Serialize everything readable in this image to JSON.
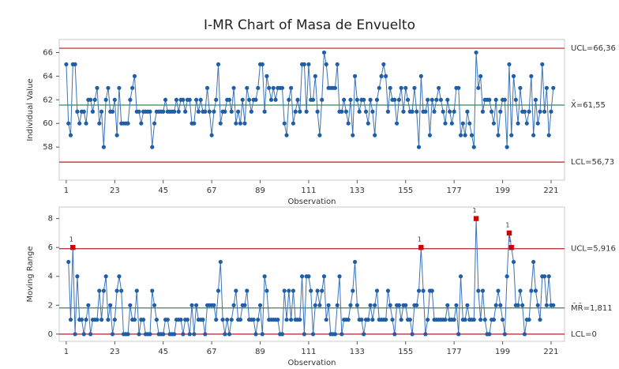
{
  "chart_data": [
    {
      "type": "line",
      "title": "I-MR Chart of Masa de Envuelto",
      "x_label": "Observation",
      "y_label": "Individual Value",
      "x": [
        1,
        2,
        3,
        4,
        5,
        6,
        7,
        8,
        9,
        10,
        11,
        12,
        13,
        14,
        15,
        16,
        17,
        18,
        19,
        20,
        21,
        22,
        23,
        24,
        25,
        26,
        27,
        28,
        29,
        30,
        31,
        32,
        33,
        34,
        35,
        36,
        37,
        38,
        39,
        40,
        41,
        42,
        43,
        44,
        45,
        46,
        47,
        48,
        49,
        50,
        51,
        52,
        53,
        54,
        55,
        56,
        57,
        58,
        59,
        60,
        61,
        62,
        63,
        64,
        65,
        66,
        67,
        68,
        69,
        70,
        71,
        72,
        73,
        74,
        75,
        76,
        77,
        78,
        79,
        80,
        81,
        82,
        83,
        84,
        85,
        86,
        87,
        88,
        89,
        90,
        91,
        92,
        93,
        94,
        95,
        96,
        97,
        98,
        99,
        100,
        101,
        102,
        103,
        104,
        105,
        106,
        107,
        108,
        109,
        110,
        111,
        112,
        113,
        114,
        115,
        116,
        117,
        118,
        119,
        120,
        121,
        122,
        123,
        124,
        125,
        126,
        127,
        128,
        129,
        130,
        131,
        132,
        133,
        134,
        135,
        136,
        137,
        138,
        139,
        140,
        141,
        142,
        143,
        144,
        145,
        146,
        147,
        148,
        149,
        150,
        151,
        152,
        153,
        154,
        155,
        156,
        157,
        158,
        159,
        160,
        161,
        162,
        163,
        164,
        165,
        166,
        167,
        168,
        169,
        170,
        171,
        172,
        173,
        174,
        175,
        176,
        177,
        178,
        179,
        180,
        181,
        182,
        183,
        184,
        185,
        186,
        187,
        188,
        189,
        190,
        191,
        192,
        193,
        194,
        195,
        196,
        197,
        198,
        199,
        200,
        201,
        202,
        203,
        204,
        205,
        206,
        207,
        208,
        209,
        210,
        211,
        212,
        213,
        214,
        215,
        216,
        217,
        218,
        219,
        220,
        221,
        222
      ],
      "values": [
        65,
        60,
        59,
        65,
        65,
        61,
        60,
        61,
        61,
        60,
        62,
        62,
        61,
        62,
        63,
        60,
        61,
        58,
        62,
        63,
        61,
        61,
        62,
        59,
        63,
        60,
        60,
        60,
        60,
        62,
        63,
        64,
        61,
        61,
        60,
        61,
        61,
        61,
        61,
        58,
        60,
        61,
        61,
        61,
        61,
        62,
        61,
        61,
        61,
        61,
        62,
        61,
        62,
        62,
        61,
        62,
        62,
        60,
        60,
        62,
        61,
        62,
        61,
        61,
        63,
        61,
        59,
        61,
        62,
        65,
        60,
        61,
        61,
        62,
        62,
        61,
        63,
        60,
        61,
        60,
        62,
        60,
        63,
        62,
        61,
        62,
        62,
        63,
        65,
        65,
        61,
        64,
        63,
        62,
        63,
        62,
        63,
        63,
        63,
        60,
        59,
        62,
        63,
        60,
        61,
        62,
        61,
        65,
        65,
        61,
        65,
        62,
        62,
        64,
        61,
        59,
        62,
        66,
        65,
        63,
        63,
        63,
        63,
        65,
        61,
        61,
        62,
        61,
        60,
        62,
        59,
        64,
        62,
        61,
        62,
        62,
        61,
        60,
        62,
        61,
        59,
        62,
        63,
        64,
        65,
        64,
        61,
        63,
        62,
        62,
        60,
        62,
        63,
        61,
        63,
        62,
        61,
        61,
        63,
        61,
        58,
        64,
        61,
        61,
        62,
        59,
        62,
        61,
        62,
        63,
        62,
        61,
        60,
        62,
        61,
        60,
        61,
        63,
        63,
        59,
        60,
        59,
        61,
        60,
        59,
        58,
        66,
        63,
        64,
        61,
        62,
        62,
        62,
        61,
        60,
        62,
        59,
        61,
        62,
        62,
        58,
        65,
        59,
        64,
        62,
        60,
        63,
        61,
        61,
        60,
        61,
        64,
        59,
        62,
        60,
        61,
        65,
        61,
        63,
        59,
        61,
        63
      ],
      "color": "#1f5fa8",
      "xlim": [
        -2.2,
        227.1
      ],
      "ylim": [
        55.2,
        67.1
      ],
      "xticks": [
        1,
        23,
        45,
        67,
        89,
        111,
        133,
        155,
        177,
        199,
        221
      ],
      "yticks": [
        58,
        60,
        62,
        64,
        66
      ],
      "limits": [
        {
          "label": "UCL=66,36",
          "value": 66.36,
          "color": "#b22222"
        },
        {
          "label": "X̄=61,55",
          "value": 61.55,
          "color": "#2e8b57"
        },
        {
          "label": "LCL=56,73",
          "value": 56.73,
          "color": "#b22222"
        }
      ]
    },
    {
      "type": "line",
      "x_label": "Observation",
      "y_label": "Moving Range",
      "flag_label": "1",
      "flag_color": "#d40000",
      "x": [
        2,
        3,
        4,
        5,
        6,
        7,
        8,
        9,
        10,
        11,
        12,
        13,
        14,
        15,
        16,
        17,
        18,
        19,
        20,
        21,
        22,
        23,
        24,
        25,
        26,
        27,
        28,
        29,
        30,
        31,
        32,
        33,
        34,
        35,
        36,
        37,
        38,
        39,
        40,
        41,
        42,
        43,
        44,
        45,
        46,
        47,
        48,
        49,
        50,
        51,
        52,
        53,
        54,
        55,
        56,
        57,
        58,
        59,
        60,
        61,
        62,
        63,
        64,
        65,
        66,
        67,
        68,
        69,
        70,
        71,
        72,
        73,
        74,
        75,
        76,
        77,
        78,
        79,
        80,
        81,
        82,
        83,
        84,
        85,
        86,
        87,
        88,
        89,
        90,
        91,
        92,
        93,
        94,
        95,
        96,
        97,
        98,
        99,
        100,
        101,
        102,
        103,
        104,
        105,
        106,
        107,
        108,
        109,
        110,
        111,
        112,
        113,
        114,
        115,
        116,
        117,
        118,
        119,
        120,
        121,
        122,
        123,
        124,
        125,
        126,
        127,
        128,
        129,
        130,
        131,
        132,
        133,
        134,
        135,
        136,
        137,
        138,
        139,
        140,
        141,
        142,
        143,
        144,
        145,
        146,
        147,
        148,
        149,
        150,
        151,
        152,
        153,
        154,
        155,
        156,
        157,
        158,
        159,
        160,
        161,
        162,
        163,
        164,
        165,
        166,
        167,
        168,
        169,
        170,
        171,
        172,
        173,
        174,
        175,
        176,
        177,
        178,
        179,
        180,
        181,
        182,
        183,
        184,
        185,
        186,
        187,
        188,
        189,
        190,
        191,
        192,
        193,
        194,
        195,
        196,
        197,
        198,
        199,
        200,
        201,
        202,
        203,
        204,
        205,
        206,
        207,
        208,
        209,
        210,
        211,
        212,
        213,
        214,
        215,
        216,
        217,
        218,
        219,
        220,
        221,
        222
      ],
      "values": [
        5,
        1,
        6,
        0,
        4,
        1,
        1,
        0,
        1,
        2,
        0,
        1,
        1,
        1,
        3,
        1,
        3,
        4,
        1,
        2,
        0,
        1,
        3,
        4,
        3,
        0,
        0,
        0,
        2,
        1,
        1,
        3,
        0,
        1,
        1,
        0,
        0,
        0,
        3,
        2,
        1,
        0,
        0,
        0,
        1,
        1,
        0,
        0,
        0,
        1,
        1,
        1,
        0,
        1,
        1,
        0,
        2,
        0,
        2,
        1,
        1,
        1,
        0,
        2,
        2,
        2,
        2,
        1,
        3,
        5,
        1,
        0,
        1,
        0,
        1,
        2,
        3,
        1,
        1,
        2,
        2,
        3,
        1,
        1,
        1,
        0,
        1,
        2,
        0,
        4,
        3,
        1,
        1,
        1,
        1,
        1,
        0,
        0,
        3,
        1,
        3,
        1,
        3,
        1,
        1,
        1,
        4,
        0,
        4,
        4,
        3,
        0,
        2,
        3,
        2,
        3,
        4,
        1,
        2,
        0,
        0,
        0,
        2,
        4,
        0,
        1,
        1,
        1,
        2,
        3,
        5,
        2,
        1,
        1,
        0,
        1,
        1,
        2,
        1,
        2,
        3,
        1,
        1,
        1,
        1,
        3,
        2,
        1,
        0,
        2,
        2,
        1,
        2,
        2,
        1,
        1,
        0,
        2,
        2,
        3,
        6,
        3,
        0,
        1,
        3,
        3,
        1,
        1,
        1,
        1,
        1,
        1,
        2,
        1,
        1,
        1,
        2,
        0,
        4,
        1,
        1,
        2,
        1,
        1,
        1,
        8,
        3,
        1,
        3,
        1,
        0,
        0,
        1,
        1,
        2,
        3,
        2,
        1,
        0,
        4,
        7,
        6,
        5,
        2,
        2,
        3,
        2,
        0,
        1,
        1,
        3,
        5,
        3,
        2,
        1,
        4,
        4,
        2,
        4,
        2,
        2
      ],
      "color": "#1f5fa8",
      "xlim": [
        -2.2,
        227.1
      ],
      "ylim": [
        -0.5,
        8.8
      ],
      "xticks": [
        1,
        23,
        45,
        67,
        89,
        111,
        133,
        155,
        177,
        199,
        221
      ],
      "yticks": [
        0,
        2,
        4,
        6,
        8
      ],
      "limits": [
        {
          "label": "UCL=5,916",
          "value": 5.916,
          "color": "#b22222"
        },
        {
          "label": "M̄R̄=1,811",
          "value": 1.811,
          "color": "#2e8b57"
        },
        {
          "label": "LCL=0",
          "value": 0,
          "color": "#b22222"
        }
      ]
    }
  ]
}
